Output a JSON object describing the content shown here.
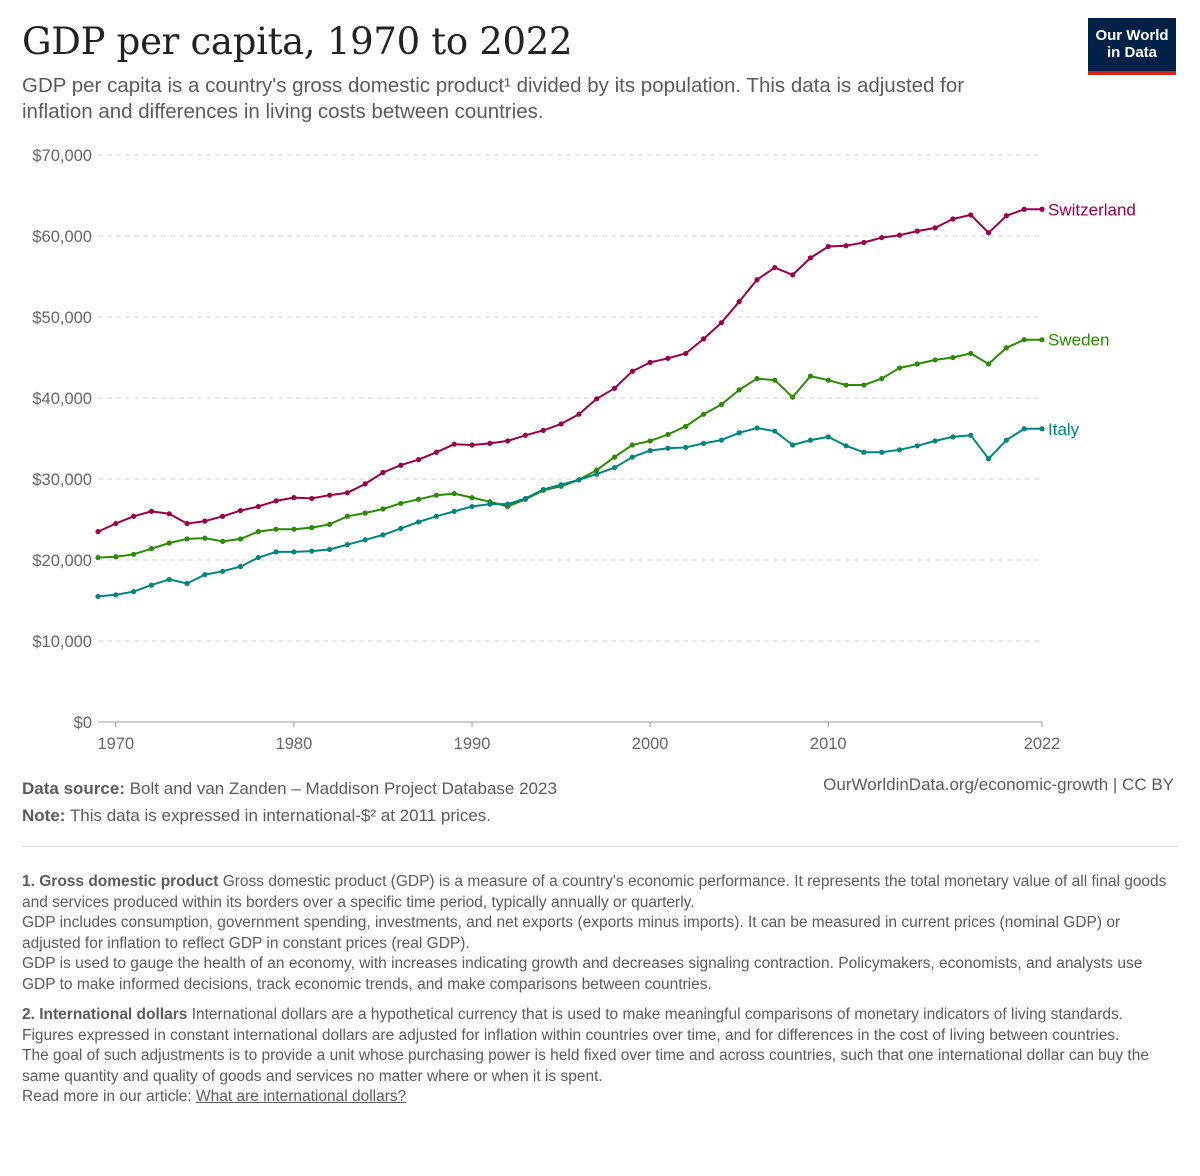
{
  "header": {
    "title": "GDP per capita, 1970 to 2022",
    "subtitle": "GDP per capita is a country's gross domestic product¹ divided by its population. This data is adjusted for inflation and differences in living costs between countries.",
    "logo_line1": "Our World",
    "logo_line2": "in Data"
  },
  "colors": {
    "Switzerland": "#970046",
    "Sweden": "#2c8a06",
    "Italy": "#00847e",
    "grid": "#d0d0d0",
    "axis": "#999999",
    "logo_bg": "#002147",
    "logo_accent": "#ce261e"
  },
  "chart_data": {
    "type": "line",
    "title": "GDP per capita, 1970 to 2022",
    "xlabel": "",
    "ylabel": "",
    "xlim": [
      1969,
      2022
    ],
    "ylim": [
      0,
      70000
    ],
    "y_ticks": [
      0,
      10000,
      20000,
      30000,
      40000,
      50000,
      60000,
      70000
    ],
    "y_tick_labels": [
      "$0",
      "$10,000",
      "$20,000",
      "$30,000",
      "$40,000",
      "$50,000",
      "$60,000",
      "$70,000"
    ],
    "x_ticks": [
      1970,
      1980,
      1990,
      2000,
      2010,
      2022
    ],
    "x_tick_labels": [
      "1970",
      "1980",
      "1990",
      "2000",
      "2010",
      "2022"
    ],
    "grid": "horizontal dashed",
    "legend": "inline labels at line ends (right)",
    "x": [
      1969,
      1970,
      1971,
      1972,
      1973,
      1974,
      1975,
      1976,
      1977,
      1978,
      1979,
      1980,
      1981,
      1982,
      1983,
      1984,
      1985,
      1986,
      1987,
      1988,
      1989,
      1990,
      1991,
      1992,
      1993,
      1994,
      1995,
      1996,
      1997,
      1998,
      1999,
      2000,
      2001,
      2002,
      2003,
      2004,
      2005,
      2006,
      2007,
      2008,
      2009,
      2010,
      2011,
      2012,
      2013,
      2014,
      2015,
      2016,
      2017,
      2018,
      2019,
      2020,
      2021,
      2022
    ],
    "series": [
      {
        "name": "Switzerland",
        "values": [
          23500,
          24500,
          25400,
          26000,
          25700,
          24500,
          24800,
          25400,
          26100,
          26600,
          27300,
          27700,
          27600,
          28000,
          28300,
          29400,
          30800,
          31700,
          32400,
          33300,
          34300,
          34200,
          34400,
          34700,
          35400,
          36000,
          36800,
          38000,
          39900,
          41200,
          43300,
          44400,
          44900,
          45500,
          47300,
          49300,
          51900,
          54600,
          56100,
          55200,
          57300,
          58700,
          58800,
          59200,
          59800,
          60100,
          60600,
          61000,
          62100,
          62600,
          60400,
          62500,
          63300,
          63300
        ],
        "end_label": "Switzerland"
      },
      {
        "name": "Sweden",
        "values": [
          20300,
          20400,
          20700,
          21400,
          22100,
          22600,
          22700,
          22300,
          22600,
          23500,
          23800,
          23800,
          24000,
          24400,
          25400,
          25800,
          26300,
          27000,
          27500,
          28000,
          28200,
          27700,
          27200,
          26600,
          27500,
          28600,
          29100,
          29900,
          31100,
          32700,
          34200,
          34700,
          35500,
          36500,
          38000,
          39200,
          41000,
          42400,
          42200,
          40100,
          42700,
          42200,
          41600,
          41600,
          42400,
          43700,
          44200,
          44700,
          45000,
          45500,
          44200,
          46200,
          47200,
          47200
        ],
        "end_label": "Sweden"
      },
      {
        "name": "Italy",
        "values": [
          15500,
          15700,
          16100,
          16900,
          17600,
          17100,
          18200,
          18600,
          19200,
          20300,
          21000,
          21000,
          21100,
          21300,
          21900,
          22500,
          23100,
          23900,
          24700,
          25400,
          26000,
          26600,
          26900,
          26900,
          27600,
          28700,
          29300,
          29900,
          30600,
          31400,
          32700,
          33500,
          33800,
          33900,
          34400,
          34800,
          35700,
          36300,
          35900,
          34200,
          34800,
          35200,
          34100,
          33300,
          33300,
          33600,
          34100,
          34700,
          35200,
          35400,
          32500,
          34800,
          36200,
          36200
        ],
        "end_label": "Italy"
      }
    ]
  },
  "footer": {
    "source_label": "Data source:",
    "source_text": "Bolt and van Zanden – Maddison Project Database 2023",
    "note_label": "Note:",
    "note_text": "This data is expressed in international-$² at 2011 prices.",
    "right_text": "OurWorldinData.org/economic-growth | CC BY"
  },
  "notes": {
    "n1_title": "1. Gross domestic product",
    "n1_p1": "Gross domestic product (GDP) is a measure of a country's economic performance. It represents the total monetary value of all final goods and services produced within its borders over a specific time period, typically annually or quarterly.",
    "n1_p2": "GDP includes consumption, government spending, investments, and net exports (exports minus imports). It can be measured in current prices (nominal GDP) or adjusted for inflation to reflect GDP in constant prices (real GDP).",
    "n1_p3": "GDP is used to gauge the health of an economy, with increases indicating growth and decreases signaling contraction. Policymakers, economists, and analysts use GDP to make informed decisions, track economic trends, and make comparisons between countries.",
    "n2_title": "2. International dollars",
    "n2_p1": "International dollars are a hypothetical currency that is used to make meaningful comparisons of monetary indicators of living standards.",
    "n2_p2": "Figures expressed in constant international dollars are adjusted for inflation within countries over time, and for differences in the cost of living between countries.",
    "n2_p3": "The goal of such adjustments is to provide a unit whose purchasing power is held fixed over time and across countries, such that one international dollar can buy the same quantity and quality of goods and services no matter where or when it is spent.",
    "n2_read_more": "Read more in our article:",
    "n2_link": "What are international dollars?"
  }
}
